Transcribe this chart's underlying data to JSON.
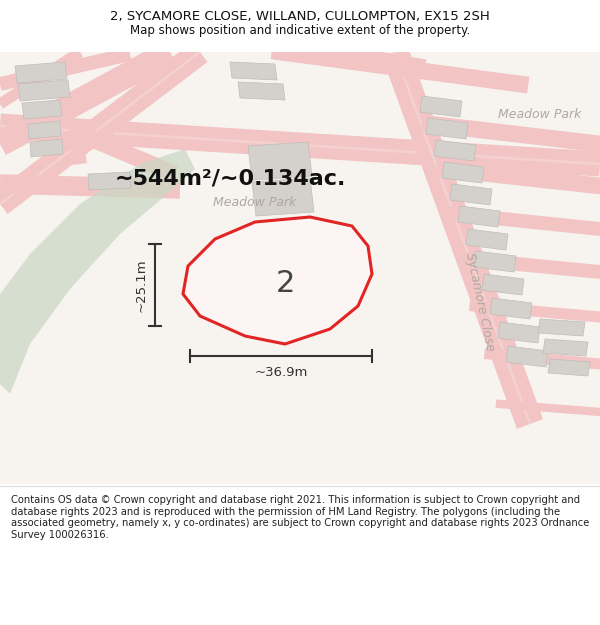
{
  "title_line1": "2, SYCAMORE CLOSE, WILLAND, CULLOMPTON, EX15 2SH",
  "title_line2": "Map shows position and indicative extent of the property.",
  "footer": "Contains OS data © Crown copyright and database right 2021. This information is subject to Crown copyright and database rights 2023 and is reproduced with the permission of HM Land Registry. The polygons (including the associated geometry, namely x, y co-ordinates) are subject to Crown copyright and database rights 2023 Ordnance Survey 100026316.",
  "area_label": "~544m²/~0.134ac.",
  "property_number": "2",
  "width_label": "~36.9m",
  "height_label": "~25.1m",
  "road_label_meadow": "Meadow Park",
  "road_label_sycamore": "Sycamore Close",
  "map_bg": "#f7f4f0",
  "road_color": "#f2c4c4",
  "road_color2": "#f5d0d0",
  "building_fill": "#d4d0cc",
  "building_edge": "#c0bcb8",
  "green_fill": "#ccd8c4",
  "property_fill": "#fff0f0",
  "property_edge": "#dd0000",
  "dim_color": "#333333",
  "text_color": "#222222",
  "road_text_color": "#b0a8a0",
  "title_fontsize": 9.5,
  "subtitle_fontsize": 8.5,
  "area_fontsize": 16,
  "footer_fontsize": 7.2
}
